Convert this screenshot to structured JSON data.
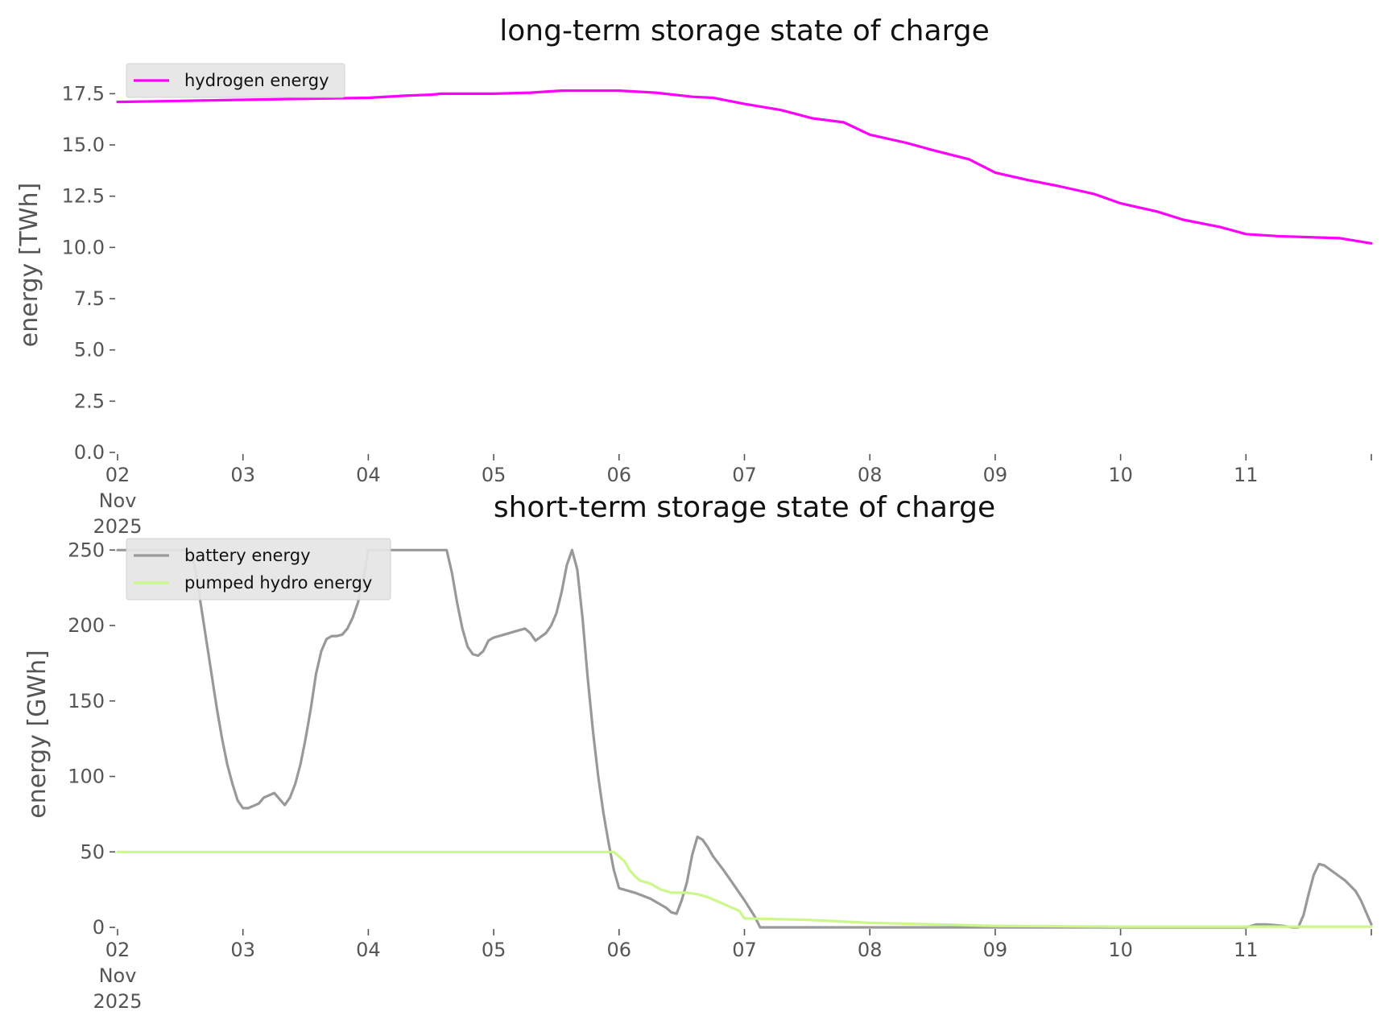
{
  "chart_data": [
    {
      "type": "line",
      "title": "long-term storage state of charge",
      "xlabel": "",
      "ylabel": "energy [TWh]",
      "ylim": [
        0,
        18.3
      ],
      "xlim": [
        "2025-11-02",
        "2025-11-12"
      ],
      "x_ticks": [
        {
          "date": "2025-11-02",
          "lines": [
            "02",
            "Nov",
            "2025"
          ]
        },
        {
          "date": "2025-11-03",
          "lines": [
            "03"
          ]
        },
        {
          "date": "2025-11-04",
          "lines": [
            "04"
          ]
        },
        {
          "date": "2025-11-05",
          "lines": [
            "05"
          ]
        },
        {
          "date": "2025-11-06",
          "lines": [
            "06"
          ]
        },
        {
          "date": "2025-11-07",
          "lines": [
            "07"
          ]
        },
        {
          "date": "2025-11-08",
          "lines": [
            "08"
          ]
        },
        {
          "date": "2025-11-09",
          "lines": [
            "09"
          ]
        },
        {
          "date": "2025-11-10",
          "lines": [
            "10"
          ]
        },
        {
          "date": "2025-11-11",
          "lines": [
            "11"
          ]
        },
        {
          "date": "2025-11-12",
          "lines": [
            ""
          ]
        }
      ],
      "y_ticks": [
        {
          "value": 0,
          "label": "0.0"
        },
        {
          "value": 2.5,
          "label": "2.5"
        },
        {
          "value": 5,
          "label": "5.0"
        },
        {
          "value": 7.5,
          "label": "7.5"
        },
        {
          "value": 10,
          "label": "10.0"
        },
        {
          "value": 12.5,
          "label": "12.5"
        },
        {
          "value": 15,
          "label": "15.0"
        },
        {
          "value": 17.5,
          "label": "17.5"
        }
      ],
      "grid": false,
      "legend_position": "top-left",
      "series": [
        {
          "name": "hydrogen energy",
          "color": "#ff00ff",
          "points": [
            [
              "2025-11-02 00:00",
              17.1
            ],
            [
              "2025-11-02 12:00",
              17.15
            ],
            [
              "2025-11-03 00:00",
              17.2
            ],
            [
              "2025-11-03 12:00",
              17.25
            ],
            [
              "2025-11-04 00:00",
              17.3
            ],
            [
              "2025-11-04 07:00",
              17.4
            ],
            [
              "2025-11-04 12:00",
              17.45
            ],
            [
              "2025-11-04 14:00",
              17.5
            ],
            [
              "2025-11-05 00:00",
              17.5
            ],
            [
              "2025-11-05 07:00",
              17.55
            ],
            [
              "2025-11-05 13:00",
              17.65
            ],
            [
              "2025-11-06 00:00",
              17.65
            ],
            [
              "2025-11-06 07:00",
              17.55
            ],
            [
              "2025-11-06 14:00",
              17.35
            ],
            [
              "2025-11-06 18:00",
              17.3
            ],
            [
              "2025-11-07 00:00",
              17.0
            ],
            [
              "2025-11-07 07:00",
              16.7
            ],
            [
              "2025-11-07 13:00",
              16.3
            ],
            [
              "2025-11-07 19:00",
              16.1
            ],
            [
              "2025-11-08 00:00",
              15.5
            ],
            [
              "2025-11-08 07:00",
              15.1
            ],
            [
              "2025-11-08 12:00",
              14.75
            ],
            [
              "2025-11-08 19:00",
              14.3
            ],
            [
              "2025-11-09 00:00",
              13.65
            ],
            [
              "2025-11-09 06:00",
              13.3
            ],
            [
              "2025-11-09 12:00",
              13.0
            ],
            [
              "2025-11-09 19:00",
              12.6
            ],
            [
              "2025-11-10 00:00",
              12.15
            ],
            [
              "2025-11-10 07:00",
              11.75
            ],
            [
              "2025-11-10 12:00",
              11.35
            ],
            [
              "2025-11-10 19:00",
              11.0
            ],
            [
              "2025-11-11 00:00",
              10.65
            ],
            [
              "2025-11-11 06:00",
              10.55
            ],
            [
              "2025-11-11 12:00",
              10.5
            ],
            [
              "2025-11-11 18:00",
              10.45
            ],
            [
              "2025-11-12 00:00",
              10.2
            ]
          ]
        }
      ]
    },
    {
      "type": "line",
      "title": "short-term storage state of charge",
      "xlabel": "",
      "ylabel": "energy [GWh]",
      "ylim": [
        0,
        256
      ],
      "xlim": [
        "2025-11-02",
        "2025-11-12"
      ],
      "x_ticks": [
        {
          "date": "2025-11-02",
          "lines": [
            "02",
            "Nov",
            "2025"
          ]
        },
        {
          "date": "2025-11-03",
          "lines": [
            "03"
          ]
        },
        {
          "date": "2025-11-04",
          "lines": [
            "04"
          ]
        },
        {
          "date": "2025-11-05",
          "lines": [
            "05"
          ]
        },
        {
          "date": "2025-11-06",
          "lines": [
            "06"
          ]
        },
        {
          "date": "2025-11-07",
          "lines": [
            "07"
          ]
        },
        {
          "date": "2025-11-08",
          "lines": [
            "08"
          ]
        },
        {
          "date": "2025-11-09",
          "lines": [
            "09"
          ]
        },
        {
          "date": "2025-11-10",
          "lines": [
            "10"
          ]
        },
        {
          "date": "2025-11-11",
          "lines": [
            "11"
          ]
        },
        {
          "date": "2025-11-12",
          "lines": [
            ""
          ]
        }
      ],
      "y_ticks": [
        {
          "value": 0,
          "label": "0"
        },
        {
          "value": 50,
          "label": "50"
        },
        {
          "value": 100,
          "label": "100"
        },
        {
          "value": 150,
          "label": "150"
        },
        {
          "value": 200,
          "label": "200"
        },
        {
          "value": 250,
          "label": "250"
        }
      ],
      "grid": false,
      "legend_position": "top-left",
      "series": [
        {
          "name": "battery energy",
          "color": "#999999",
          "points": [
            [
              "2025-11-02 00:00",
              250
            ],
            [
              "2025-11-02 14:00",
              250
            ],
            [
              "2025-11-02 15:00",
              235
            ],
            [
              "2025-11-02 17:00",
              190
            ],
            [
              "2025-11-02 19:00",
              145
            ],
            [
              "2025-11-02 20:00",
              125
            ],
            [
              "2025-11-02 21:00",
              108
            ],
            [
              "2025-11-02 22:00",
              95
            ],
            [
              "2025-11-02 23:00",
              84
            ],
            [
              "2025-11-03 00:00",
              79
            ],
            [
              "2025-11-03 01:00",
              79
            ],
            [
              "2025-11-03 03:00",
              82
            ],
            [
              "2025-11-03 04:00",
              86
            ],
            [
              "2025-11-03 06:00",
              89
            ],
            [
              "2025-11-03 07:00",
              85
            ],
            [
              "2025-11-03 08:00",
              81
            ],
            [
              "2025-11-03 09:00",
              86
            ],
            [
              "2025-11-03 10:00",
              95
            ],
            [
              "2025-11-03 11:00",
              108
            ],
            [
              "2025-11-03 12:00",
              125
            ],
            [
              "2025-11-03 13:00",
              145
            ],
            [
              "2025-11-03 14:00",
              168
            ],
            [
              "2025-11-03 15:00",
              183
            ],
            [
              "2025-11-03 16:00",
              191
            ],
            [
              "2025-11-03 17:00",
              193
            ],
            [
              "2025-11-03 18:00",
              193
            ],
            [
              "2025-11-03 19:00",
              194
            ],
            [
              "2025-11-03 20:00",
              198
            ],
            [
              "2025-11-03 21:00",
              205
            ],
            [
              "2025-11-03 22:00",
              215
            ],
            [
              "2025-11-03 23:00",
              230
            ],
            [
              "2025-11-04 00:00",
              250
            ],
            [
              "2025-11-04 15:00",
              250
            ],
            [
              "2025-11-04 16:00",
              235
            ],
            [
              "2025-11-04 17:00",
              215
            ],
            [
              "2025-11-04 18:00",
              198
            ],
            [
              "2025-11-04 19:00",
              186
            ],
            [
              "2025-11-04 20:00",
              181
            ],
            [
              "2025-11-04 21:00",
              180
            ],
            [
              "2025-11-04 22:00",
              183
            ],
            [
              "2025-11-04 23:00",
              190
            ],
            [
              "2025-11-05 00:00",
              192
            ],
            [
              "2025-11-05 03:00",
              195
            ],
            [
              "2025-11-05 06:00",
              198
            ],
            [
              "2025-11-05 07:00",
              195
            ],
            [
              "2025-11-05 08:00",
              190
            ],
            [
              "2025-11-05 10:00",
              195
            ],
            [
              "2025-11-05 11:00",
              200
            ],
            [
              "2025-11-05 12:00",
              208
            ],
            [
              "2025-11-05 13:00",
              222
            ],
            [
              "2025-11-05 14:00",
              240
            ],
            [
              "2025-11-05 15:00",
              250
            ],
            [
              "2025-11-05 16:00",
              237
            ],
            [
              "2025-11-05 17:00",
              205
            ],
            [
              "2025-11-05 18:00",
              165
            ],
            [
              "2025-11-05 19:00",
              130
            ],
            [
              "2025-11-05 20:00",
              100
            ],
            [
              "2025-11-05 21:00",
              76
            ],
            [
              "2025-11-05 22:00",
              56
            ],
            [
              "2025-11-05 23:00",
              38
            ],
            [
              "2025-11-06 00:00",
              26
            ],
            [
              "2025-11-06 03:00",
              23
            ],
            [
              "2025-11-06 06:00",
              19
            ],
            [
              "2025-11-06 09:00",
              13
            ],
            [
              "2025-11-06 10:00",
              10
            ],
            [
              "2025-11-06 11:00",
              9
            ],
            [
              "2025-11-06 12:00",
              18
            ],
            [
              "2025-11-06 13:00",
              30
            ],
            [
              "2025-11-06 14:00",
              48
            ],
            [
              "2025-11-06 15:00",
              60
            ],
            [
              "2025-11-06 16:00",
              58
            ],
            [
              "2025-11-06 17:00",
              53
            ],
            [
              "2025-11-06 18:00",
              47
            ],
            [
              "2025-11-06 20:00",
              38
            ],
            [
              "2025-11-06 22:00",
              28
            ],
            [
              "2025-11-07 00:00",
              18
            ],
            [
              "2025-11-07 02:00",
              7
            ],
            [
              "2025-11-07 03:00",
              0
            ],
            [
              "2025-11-11 00:00",
              0
            ],
            [
              "2025-11-11 02:00",
              2
            ],
            [
              "2025-11-11 04:00",
              2
            ],
            [
              "2025-11-11 07:00",
              1
            ],
            [
              "2025-11-11 09:00",
              0
            ],
            [
              "2025-11-11 10:00",
              0
            ],
            [
              "2025-11-11 11:00",
              8
            ],
            [
              "2025-11-11 12:00",
              22
            ],
            [
              "2025-11-11 13:00",
              35
            ],
            [
              "2025-11-11 14:00",
              42
            ],
            [
              "2025-11-11 15:00",
              41
            ],
            [
              "2025-11-11 17:00",
              36
            ],
            [
              "2025-11-11 19:00",
              31
            ],
            [
              "2025-11-11 21:00",
              24
            ],
            [
              "2025-11-11 22:00",
              18
            ],
            [
              "2025-11-11 23:00",
              10
            ],
            [
              "2025-11-12 00:00",
              2
            ]
          ]
        },
        {
          "name": "pumped hydro energy",
          "color": "#ccf78b",
          "points": [
            [
              "2025-11-02 00:00",
              50
            ],
            [
              "2025-11-05 23:00",
              50
            ],
            [
              "2025-11-06 01:00",
              44
            ],
            [
              "2025-11-06 02:00",
              38
            ],
            [
              "2025-11-06 03:00",
              34
            ],
            [
              "2025-11-06 04:00",
              31
            ],
            [
              "2025-11-06 06:00",
              29
            ],
            [
              "2025-11-06 08:00",
              25
            ],
            [
              "2025-11-06 10:00",
              23
            ],
            [
              "2025-11-06 13:00",
              23
            ],
            [
              "2025-11-06 15:00",
              22
            ],
            [
              "2025-11-06 17:00",
              20
            ],
            [
              "2025-11-06 19:00",
              17
            ],
            [
              "2025-11-06 21:00",
              14
            ],
            [
              "2025-11-06 23:00",
              11
            ],
            [
              "2025-11-07 00:00",
              6
            ],
            [
              "2025-11-07 12:00",
              5
            ],
            [
              "2025-11-08 00:00",
              3
            ],
            [
              "2025-11-09 00:00",
              1
            ],
            [
              "2025-11-10 00:00",
              0.5
            ],
            [
              "2025-11-12 00:00",
              0.5
            ]
          ]
        }
      ]
    }
  ]
}
